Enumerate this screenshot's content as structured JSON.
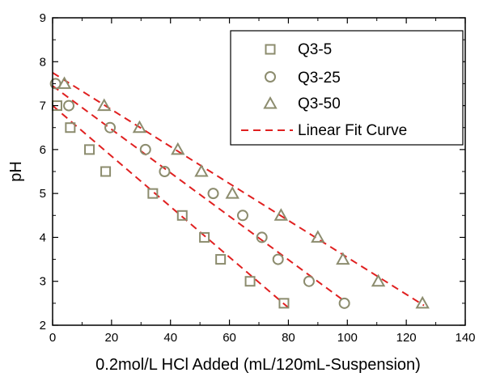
{
  "chart_data": {
    "type": "scatter",
    "xlabel": "0.2mol/L HCl Added (mL/120mL-Suspension)",
    "ylabel": "pH",
    "xlim": [
      0,
      140
    ],
    "ylim": [
      2,
      9
    ],
    "xticks": [
      0,
      20,
      40,
      60,
      80,
      100,
      120,
      140
    ],
    "yticks": [
      2,
      3,
      4,
      5,
      6,
      7,
      8,
      9
    ],
    "grid": false,
    "legend_position": "top-right",
    "colors": {
      "marker": "#8c8c6e",
      "fit": "#e02020",
      "axis": "#000000"
    },
    "series": [
      {
        "name": "Q3-5",
        "marker": "square",
        "points": [
          {
            "x": 1.5,
            "y": 7.0
          },
          {
            "x": 6,
            "y": 6.5
          },
          {
            "x": 12.5,
            "y": 6.0
          },
          {
            "x": 18,
            "y": 5.5
          },
          {
            "x": 34,
            "y": 5.0
          },
          {
            "x": 44,
            "y": 4.5
          },
          {
            "x": 51.5,
            "y": 4.0
          },
          {
            "x": 57,
            "y": 3.5
          },
          {
            "x": 67,
            "y": 3.0
          },
          {
            "x": 78.5,
            "y": 2.5
          }
        ],
        "fit": {
          "x": [
            0,
            80
          ],
          "y": [
            7.0,
            2.4
          ]
        }
      },
      {
        "name": "Q3-25",
        "marker": "circle",
        "points": [
          {
            "x": 1,
            "y": 7.5
          },
          {
            "x": 5.5,
            "y": 7.0
          },
          {
            "x": 19.5,
            "y": 6.5
          },
          {
            "x": 31.5,
            "y": 6.0
          },
          {
            "x": 38,
            "y": 5.5
          },
          {
            "x": 54.5,
            "y": 5.0
          },
          {
            "x": 64.5,
            "y": 4.5
          },
          {
            "x": 71,
            "y": 4.0
          },
          {
            "x": 76.5,
            "y": 3.5
          },
          {
            "x": 87,
            "y": 3.0
          },
          {
            "x": 99,
            "y": 2.5
          }
        ],
        "fit": {
          "x": [
            0,
            99
          ],
          "y": [
            7.45,
            2.55
          ]
        }
      },
      {
        "name": "Q3-50",
        "marker": "triangle",
        "points": [
          {
            "x": 4,
            "y": 7.5
          },
          {
            "x": 17.5,
            "y": 7.0
          },
          {
            "x": 29.5,
            "y": 6.5
          },
          {
            "x": 42.5,
            "y": 6.0
          },
          {
            "x": 50.5,
            "y": 5.5
          },
          {
            "x": 61,
            "y": 5.0
          },
          {
            "x": 77.5,
            "y": 4.5
          },
          {
            "x": 90,
            "y": 4.0
          },
          {
            "x": 98.5,
            "y": 3.5
          },
          {
            "x": 110.5,
            "y": 3.0
          },
          {
            "x": 125.5,
            "y": 2.5
          }
        ],
        "fit": {
          "x": [
            0,
            126
          ],
          "y": [
            7.75,
            2.45
          ]
        }
      }
    ],
    "fit_legend_label": "Linear Fit Curve"
  }
}
